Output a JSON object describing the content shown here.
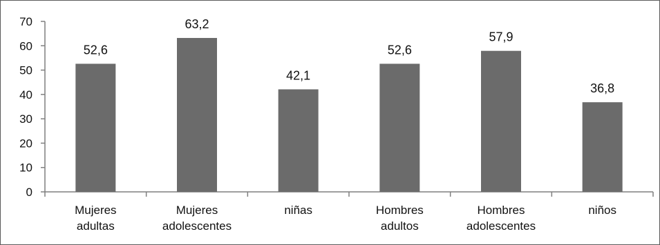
{
  "chart_data": {
    "type": "bar",
    "categories": [
      [
        "Mujeres",
        "adultas"
      ],
      [
        "Mujeres",
        "adolescentes"
      ],
      [
        "niñas"
      ],
      [
        "Hombres",
        "adultos"
      ],
      [
        "Hombres",
        "adolescentes"
      ],
      [
        "niños"
      ]
    ],
    "values": [
      52.6,
      63.2,
      42.1,
      52.6,
      57.9,
      36.8
    ],
    "data_labels": [
      "52,6",
      "63,2",
      "42,1",
      "52,6",
      "57,9",
      "36,8"
    ],
    "yticks": [
      0,
      10,
      20,
      30,
      40,
      50,
      60,
      70
    ],
    "ylim": [
      0,
      70
    ],
    "title": "",
    "xlabel": "",
    "ylabel": "",
    "grid": false,
    "legend": "none",
    "bar_color": "#6b6b6b",
    "axis_color": "#7f7f7f"
  }
}
